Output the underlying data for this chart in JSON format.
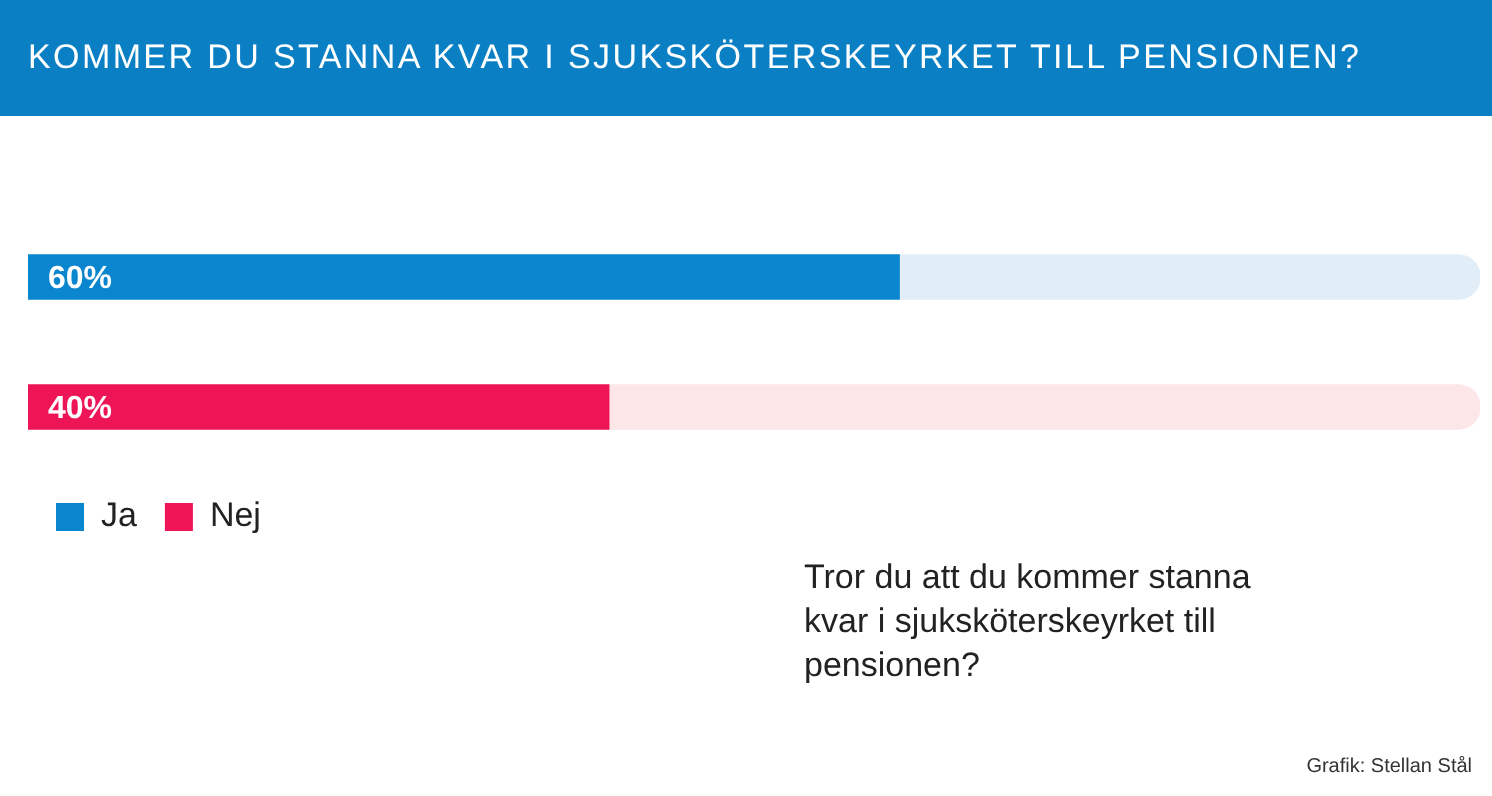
{
  "chart_data": {
    "type": "bar",
    "orientation": "horizontal",
    "stacked": true,
    "title": "KOMMER DU STANNA KVAR I SJUKSKÖTERSKEYRKET TILL PENSIONEN?",
    "categories": [
      null,
      null
    ],
    "series": [
      {
        "name": "Ja",
        "color": "#0a86cf",
        "values": [
          60,
          null
        ],
        "value_labels": [
          "60%",
          null
        ]
      },
      {
        "name": "Nej",
        "color": "#ee1556",
        "values": [
          null,
          40
        ],
        "value_labels": [
          null,
          "40%"
        ]
      },
      {
        "color": "#e1eef8",
        "values": [
          40,
          null
        ]
      },
      {
        "color": "#fde6e8",
        "values": [
          null,
          60
        ]
      }
    ],
    "xlim": [
      0,
      100
    ],
    "tick_labels": false,
    "legend": "bottom left",
    "annotations": [
      "Tror du att du kommer stanna kvar i sjuksköterskeyrket till pensionen?",
      "Grafik: Stellan Stål"
    ]
  }
}
